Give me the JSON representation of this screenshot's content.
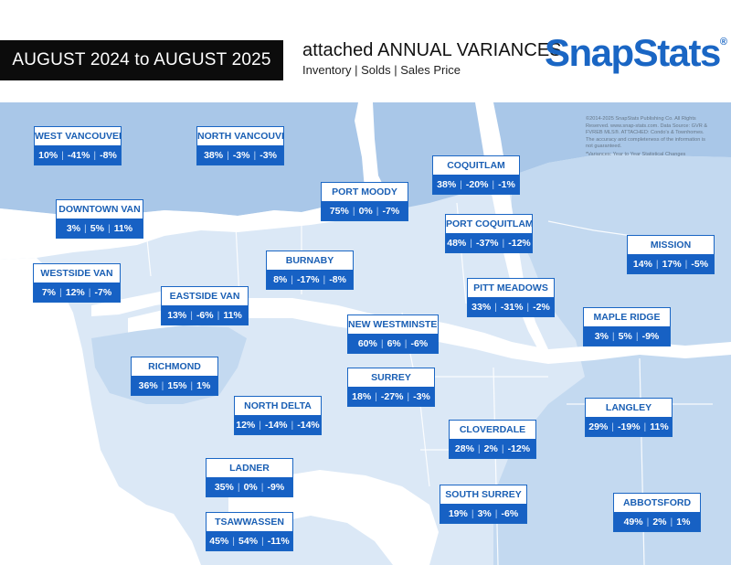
{
  "header": {
    "period": "AUGUST 2024 to AUGUST 2025",
    "title_prefix": "attached",
    "title_main": "ANNUAL VARIANCES",
    "subtitle": "Inventory | Solds | Sales Price"
  },
  "logo": {
    "text": "SnapStats",
    "mark": "®"
  },
  "copyright": "©2014-2025 SnapStats Publishing Co. All Rights Reserved. www.snap-stats.com. Data Source: GVR & FVREB MLS®. ATTACHED: Condo's & Townhomes. The accuracy and completeness of the information is not guaranteed.",
  "variance_note": "*Variances: Year to Year Statistical Changes",
  "colors": {
    "label_blue": "#1761c4",
    "map_dark": "#a9c7e8",
    "map_mid": "#c3d9f0",
    "map_light": "#dbe8f6",
    "water": "#ffffff"
  },
  "regions": [
    {
      "name": "WEST VANCOUVER",
      "inventory": "10%",
      "solds": "-41%",
      "price": "-8%"
    },
    {
      "name": "NORTH VANCOUVER",
      "inventory": "38%",
      "solds": "-3%",
      "price": "-3%"
    },
    {
      "name": "DOWNTOWN VAN",
      "inventory": "3%",
      "solds": "5%",
      "price": "11%"
    },
    {
      "name": "WESTSIDE VAN",
      "inventory": "7%",
      "solds": "12%",
      "price": "-7%"
    },
    {
      "name": "EASTSIDE VAN",
      "inventory": "13%",
      "solds": "-6%",
      "price": "11%"
    },
    {
      "name": "PORT MOODY",
      "inventory": "75%",
      "solds": "0%",
      "price": "-7%"
    },
    {
      "name": "COQUITLAM",
      "inventory": "38%",
      "solds": "-20%",
      "price": "-1%"
    },
    {
      "name": "PORT COQUITLAM",
      "inventory": "48%",
      "solds": "-37%",
      "price": "-12%"
    },
    {
      "name": "BURNABY",
      "inventory": "8%",
      "solds": "-17%",
      "price": "-8%"
    },
    {
      "name": "MISSION",
      "inventory": "14%",
      "solds": "17%",
      "price": "-5%"
    },
    {
      "name": "PITT MEADOWS",
      "inventory": "33%",
      "solds": "-31%",
      "price": "-2%"
    },
    {
      "name": "NEW WESTMINSTER",
      "inventory": "60%",
      "solds": "6%",
      "price": "-6%"
    },
    {
      "name": "MAPLE RIDGE",
      "inventory": "3%",
      "solds": "5%",
      "price": "-9%"
    },
    {
      "name": "RICHMOND",
      "inventory": "36%",
      "solds": "15%",
      "price": "1%"
    },
    {
      "name": "SURREY",
      "inventory": "18%",
      "solds": "-27%",
      "price": "-3%"
    },
    {
      "name": "NORTH DELTA",
      "inventory": "12%",
      "solds": "-14%",
      "price": "-14%"
    },
    {
      "name": "LANGLEY",
      "inventory": "29%",
      "solds": "-19%",
      "price": "11%"
    },
    {
      "name": "CLOVERDALE",
      "inventory": "28%",
      "solds": "2%",
      "price": "-12%"
    },
    {
      "name": "LADNER",
      "inventory": "35%",
      "solds": "0%",
      "price": "-9%"
    },
    {
      "name": "SOUTH SURREY",
      "inventory": "19%",
      "solds": "3%",
      "price": "-6%"
    },
    {
      "name": "ABBOTSFORD",
      "inventory": "49%",
      "solds": "2%",
      "price": "1%"
    },
    {
      "name": "TSAWWASSEN",
      "inventory": "45%",
      "solds": "54%",
      "price": "-11%"
    }
  ]
}
